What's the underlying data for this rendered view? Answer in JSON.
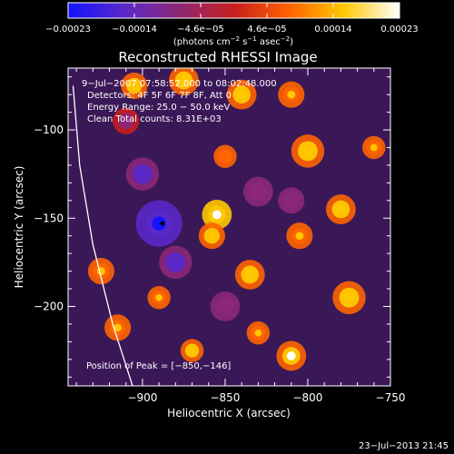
{
  "chart_data": {
    "type": "heatmap",
    "title": "Reconstructed RHESSI Image",
    "xlabel": "Heliocentric X (arcsec)",
    "ylabel": "Heliocentric Y (arcsec)",
    "xlim": [
      -945,
      -750
    ],
    "ylim": [
      -245,
      -65
    ],
    "x_ticks": [
      -900,
      -850,
      -800,
      -750
    ],
    "y_ticks": [
      -100,
      -150,
      -200
    ],
    "x_tick_labels": [
      "−900",
      "−850",
      "−800",
      "−750"
    ],
    "y_tick_labels": [
      "−100",
      "−150",
      "−200"
    ],
    "colorbar": {
      "range": [
        -0.00023,
        0.00023
      ],
      "tick_labels": [
        "−0.00023",
        "−0.00014",
        "−4.6e−05",
        "4.6e−05",
        "0.00014",
        "0.00023"
      ],
      "unit_prefix": "(photons cm",
      "unit_exp1": "−2",
      "unit_mid": " s",
      "unit_exp2": "−1",
      "unit_mid2": " asec",
      "unit_exp3": "−2",
      "unit_suffix": ")",
      "colors": [
        "#1414ff",
        "#5a28c8",
        "#8c2878",
        "#c81e1e",
        "#ff6400",
        "#ffc800",
        "#ffffff"
      ]
    },
    "info_lines": [
      "9−Jul−2007 07:58:52.000 to 08:02:48.000",
      "Detectors: 4F 5F 6F 7F 8F, Att 0",
      "Energy Range: 25.0 − 50.0 keV",
      "Clean    Total counts: 8.31E+03"
    ],
    "peak_text": "Position of Peak = [−850,−146]",
    "peak": [
      -850,
      -146
    ],
    "marker": [
      -888,
      -153
    ],
    "limb_curve": [
      [
        -942,
        -75
      ],
      [
        -938,
        -120
      ],
      [
        -930,
        -165
      ],
      [
        -918,
        -210
      ],
      [
        -906,
        -245
      ]
    ],
    "blobs": [
      {
        "x": -855,
        "y": -148,
        "v": 1.0,
        "r": 9
      },
      {
        "x": -858,
        "y": -160,
        "v": 0.7,
        "r": 8
      },
      {
        "x": -835,
        "y": -182,
        "v": 0.8,
        "r": 9
      },
      {
        "x": -870,
        "y": -225,
        "v": 0.7,
        "r": 7
      },
      {
        "x": -810,
        "y": -228,
        "v": 0.85,
        "r": 9
      },
      {
        "x": -905,
        "y": -75,
        "v": 0.75,
        "r": 8
      },
      {
        "x": -875,
        "y": -72,
        "v": 0.8,
        "r": 9
      },
      {
        "x": -840,
        "y": -80,
        "v": 0.7,
        "r": 9
      },
      {
        "x": -800,
        "y": -112,
        "v": 0.7,
        "r": 10
      },
      {
        "x": -780,
        "y": -145,
        "v": 0.65,
        "r": 9
      },
      {
        "x": -775,
        "y": -195,
        "v": 0.8,
        "r": 10
      },
      {
        "x": -805,
        "y": -160,
        "v": 0.55,
        "r": 8
      },
      {
        "x": -925,
        "y": -180,
        "v": 0.6,
        "r": 8
      },
      {
        "x": -915,
        "y": -212,
        "v": 0.55,
        "r": 8
      },
      {
        "x": -810,
        "y": -80,
        "v": 0.55,
        "r": 8
      },
      {
        "x": -760,
        "y": -110,
        "v": 0.55,
        "r": 7
      },
      {
        "x": -890,
        "y": -195,
        "v": 0.5,
        "r": 7
      },
      {
        "x": -850,
        "y": -115,
        "v": 0.45,
        "r": 7
      },
      {
        "x": -830,
        "y": -215,
        "v": 0.6,
        "r": 7
      },
      {
        "x": -890,
        "y": -153,
        "v": -0.95,
        "r": 14
      },
      {
        "x": -900,
        "y": -125,
        "v": -0.7,
        "r": 10
      },
      {
        "x": -880,
        "y": -175,
        "v": -0.7,
        "r": 10
      },
      {
        "x": -830,
        "y": -135,
        "v": -0.5,
        "r": 9
      },
      {
        "x": -810,
        "y": -140,
        "v": -0.35,
        "r": 8
      },
      {
        "x": -850,
        "y": -200,
        "v": -0.4,
        "r": 9
      },
      {
        "x": -910,
        "y": -95,
        "v": -0.3,
        "r": 8
      }
    ]
  },
  "footer": {
    "timestamp": "23−Jul−2013 21:45"
  }
}
